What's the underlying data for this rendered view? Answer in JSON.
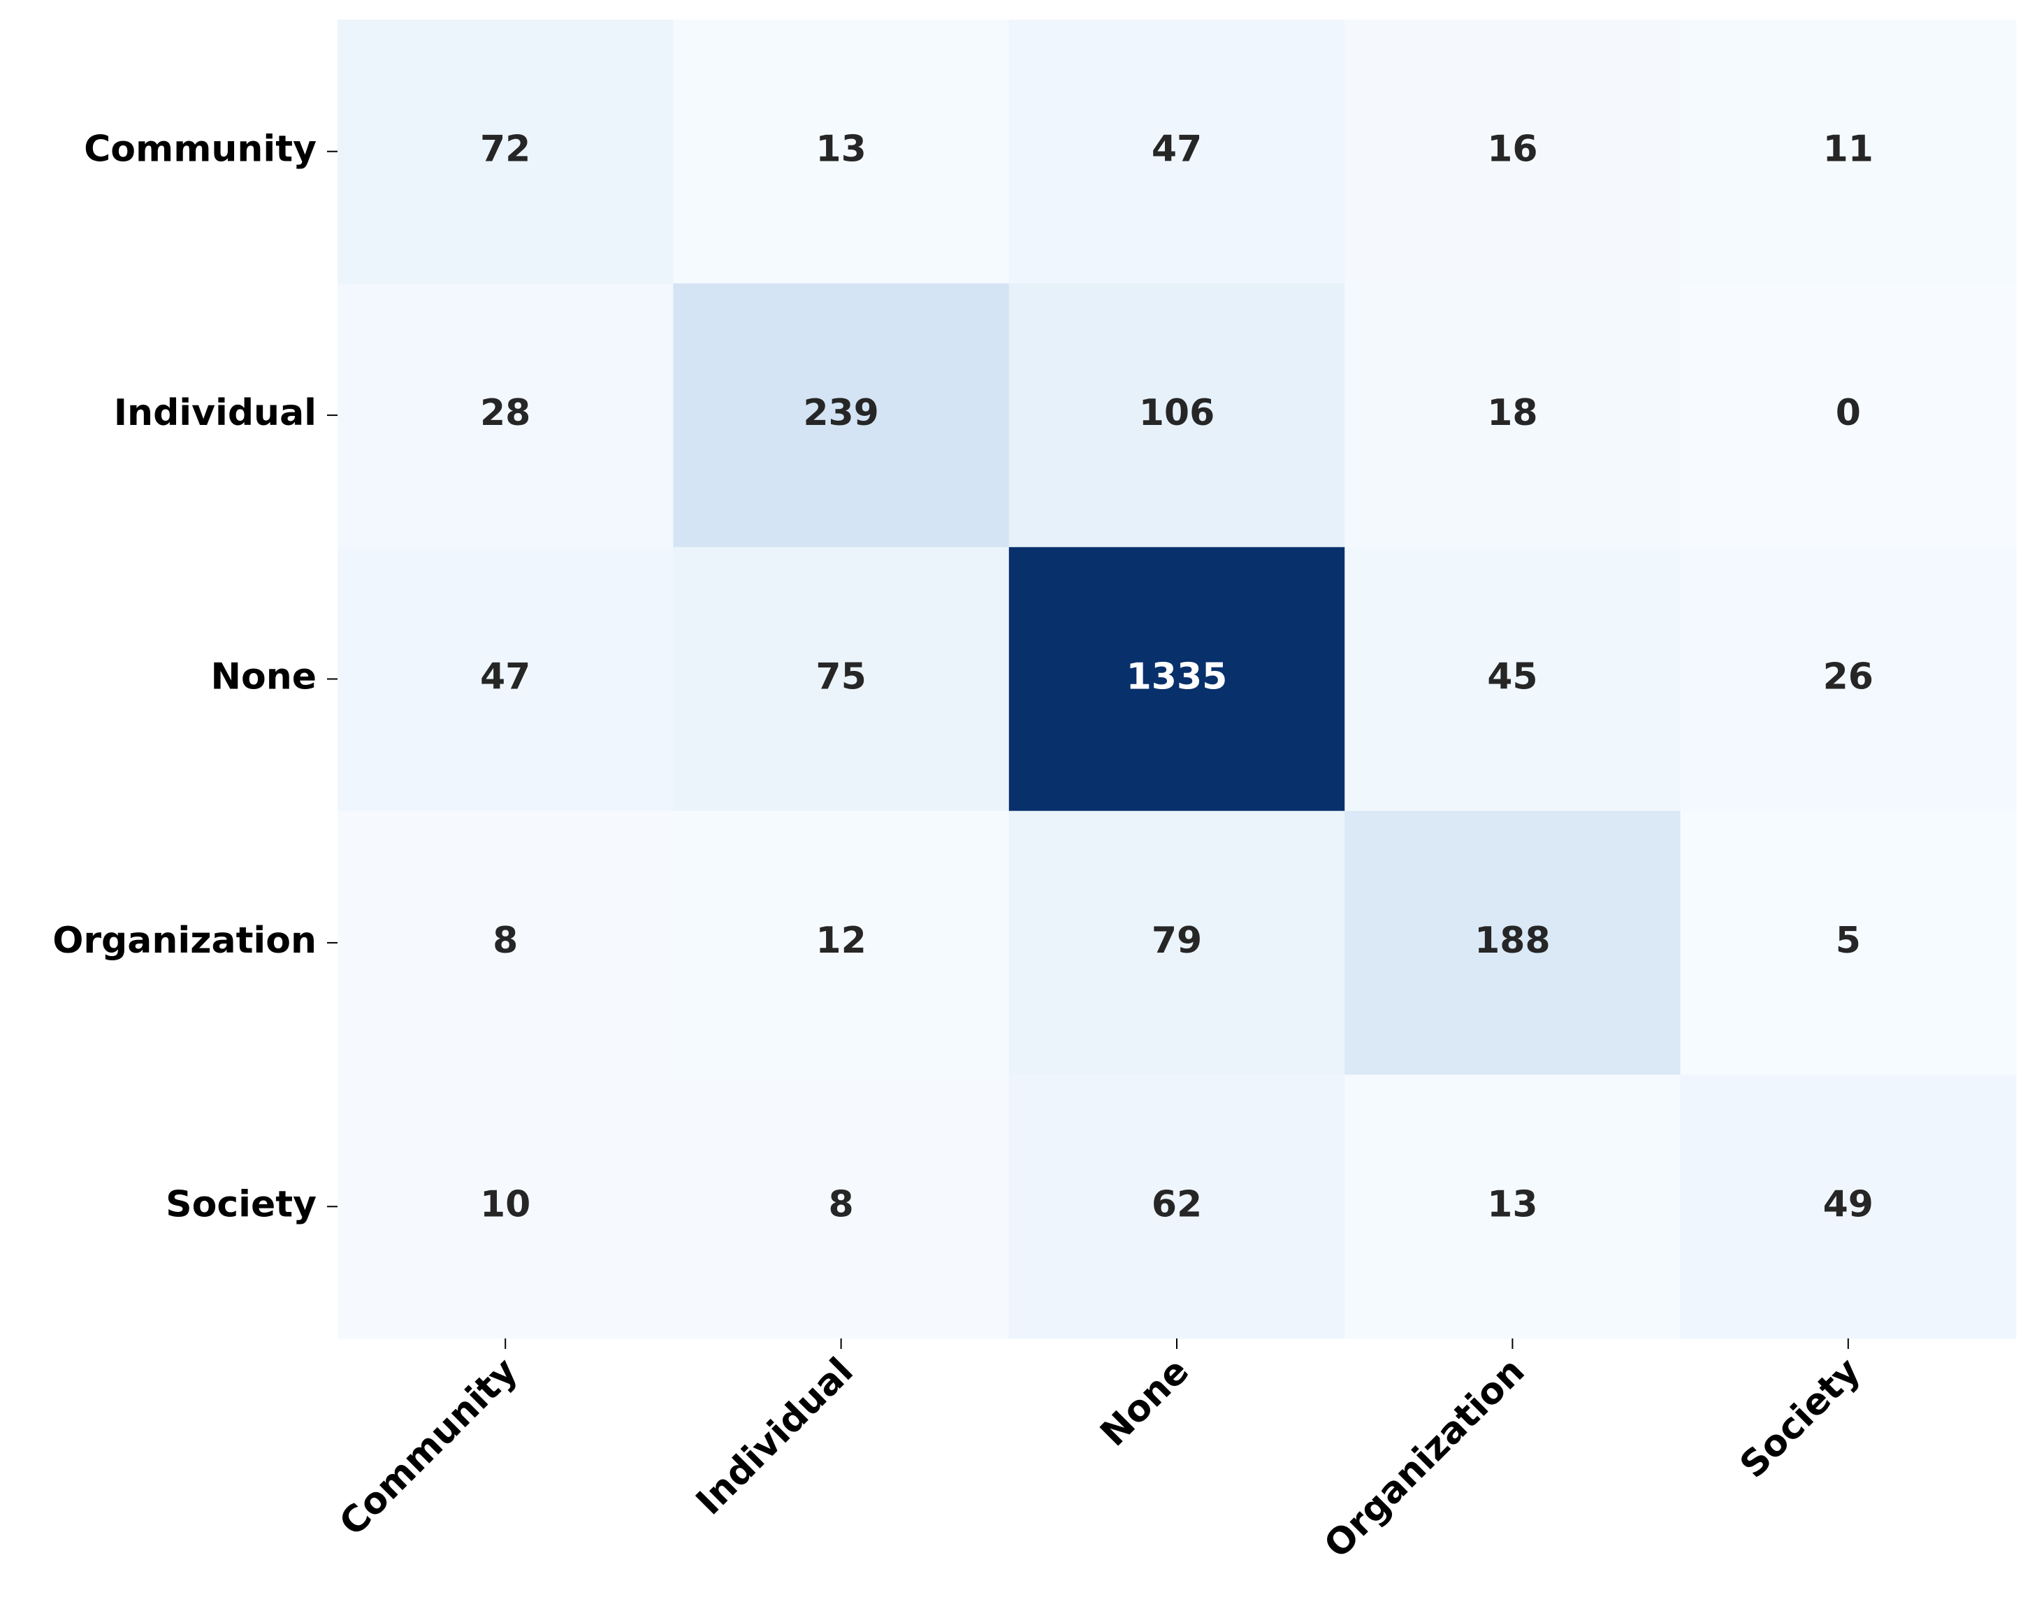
{
  "chart_data": {
    "type": "heatmap",
    "x_categories": [
      "Community",
      "Individual",
      "None",
      "Organization",
      "Society"
    ],
    "y_categories": [
      "Community",
      "Individual",
      "None",
      "Organization",
      "Society"
    ],
    "values": [
      [
        72,
        13,
        47,
        16,
        11
      ],
      [
        28,
        239,
        106,
        18,
        0
      ],
      [
        47,
        75,
        1335,
        45,
        26
      ],
      [
        8,
        12,
        79,
        188,
        5
      ],
      [
        10,
        8,
        62,
        13,
        49
      ]
    ],
    "colormap": "Blues"
  }
}
